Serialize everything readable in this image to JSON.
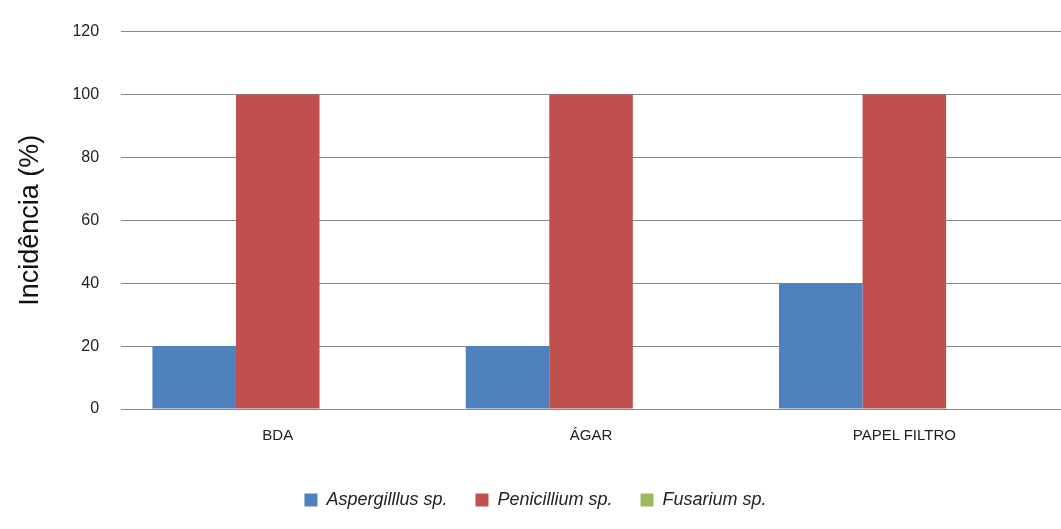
{
  "chart_data": {
    "type": "bar",
    "ylabel": "Incidência (%)",
    "categories": [
      "BDA",
      "ÁGAR",
      "PAPEL FILTRO"
    ],
    "series": [
      {
        "name": "Aspergilllus sp.",
        "color": "#4f81bd",
        "values": [
          20,
          20,
          40
        ]
      },
      {
        "name": "Penicillium sp.",
        "color": "#c0504d",
        "values": [
          100,
          100,
          100
        ]
      },
      {
        "name": "Fusarium sp.",
        "color": "#9bbb59",
        "values": [
          0,
          0,
          0
        ]
      }
    ],
    "ylim": [
      0,
      120
    ],
    "yticks": [
      0,
      20,
      40,
      60,
      80,
      100,
      120
    ],
    "grid": "y",
    "legend": "bottom"
  }
}
